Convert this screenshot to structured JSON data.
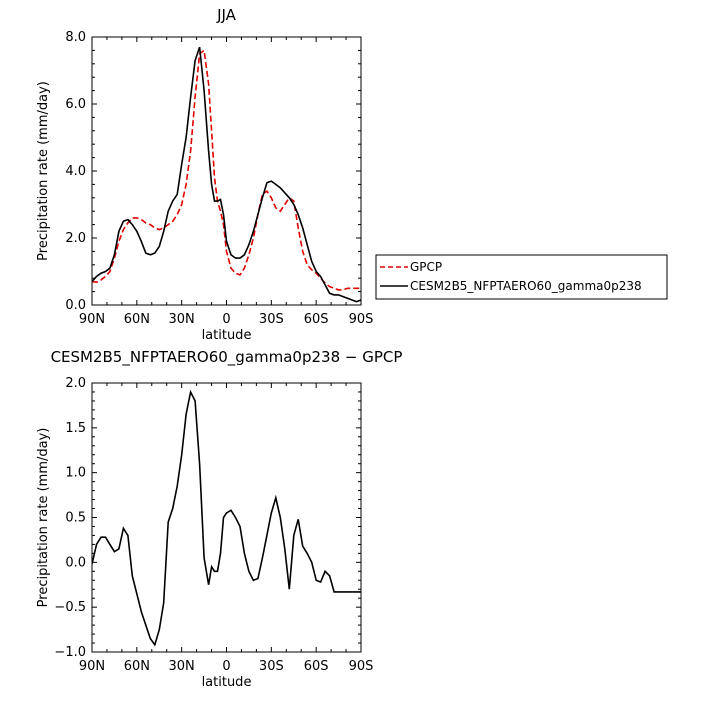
{
  "chart_data": [
    {
      "type": "line",
      "title": "JJA",
      "xlabel": "latitude",
      "ylabel": "Precipitation rate (mm/day)",
      "xlim": [
        90,
        -90
      ],
      "ylim": [
        0,
        8
      ],
      "xticks": [
        90,
        60,
        30,
        0,
        -30,
        -60,
        -90
      ],
      "xtick_labels": [
        "90N",
        "60N",
        "30N",
        "0",
        "30S",
        "60S",
        "90S"
      ],
      "yticks": [
        0,
        2,
        4,
        6,
        8
      ],
      "ytick_labels": [
        "0.0",
        "2.0",
        "4.0",
        "6.0",
        "8.0"
      ],
      "legend_position": "outside-right",
      "series": [
        {
          "name": "GPCP",
          "color": "#e00000",
          "dash": "dashed",
          "x": [
            90,
            87,
            84,
            81,
            78,
            75,
            72,
            69,
            66,
            63,
            60,
            57,
            54,
            51,
            48,
            45,
            42,
            39,
            36,
            33,
            30,
            27,
            24,
            21,
            18,
            15,
            12,
            10,
            8,
            6,
            4,
            2,
            0,
            -3,
            -6,
            -9,
            -12,
            -15,
            -18,
            -21,
            -24,
            -27,
            -30,
            -33,
            -36,
            -39,
            -42,
            -45,
            -48,
            -51,
            -54,
            -57,
            -60,
            -63,
            -66,
            -69,
            -72,
            -75,
            -78,
            -81,
            -84,
            -87,
            -90
          ],
          "values": [
            0.7,
            0.68,
            0.75,
            0.85,
            1.0,
            1.4,
            1.9,
            2.25,
            2.45,
            2.6,
            2.6,
            2.55,
            2.45,
            2.4,
            2.3,
            2.25,
            2.3,
            2.4,
            2.5,
            2.7,
            3.0,
            3.6,
            4.6,
            6.2,
            7.5,
            7.6,
            6.6,
            5.2,
            3.8,
            3.1,
            2.8,
            2.4,
            1.6,
            1.1,
            0.95,
            0.9,
            1.1,
            1.5,
            2.0,
            2.7,
            3.3,
            3.4,
            3.2,
            2.9,
            2.8,
            3.0,
            3.2,
            3.1,
            2.3,
            1.6,
            1.2,
            1.05,
            0.95,
            0.8,
            0.65,
            0.55,
            0.5,
            0.45,
            0.45,
            0.5,
            0.5,
            0.5,
            0.5
          ]
        },
        {
          "name": "CESM2B5_NFPTAERO60_gamma0p238",
          "color": "#000000",
          "dash": "solid",
          "x": [
            90,
            87,
            84,
            81,
            78,
            75,
            72,
            69,
            66,
            63,
            60,
            57,
            54,
            51,
            48,
            45,
            42,
            39,
            36,
            33,
            30,
            27,
            24,
            21,
            18,
            15,
            12,
            10,
            8,
            6,
            4,
            2,
            0,
            -3,
            -6,
            -9,
            -12,
            -15,
            -18,
            -21,
            -24,
            -27,
            -30,
            -33,
            -36,
            -39,
            -42,
            -45,
            -48,
            -51,
            -54,
            -57,
            -60,
            -63,
            -66,
            -69,
            -72,
            -75,
            -78,
            -81,
            -84,
            -87,
            -90
          ],
          "values": [
            0.7,
            0.85,
            0.95,
            1.0,
            1.1,
            1.5,
            2.2,
            2.5,
            2.55,
            2.4,
            2.2,
            1.9,
            1.55,
            1.5,
            1.55,
            1.75,
            2.2,
            2.8,
            3.1,
            3.3,
            4.2,
            5.0,
            6.2,
            7.3,
            7.7,
            6.4,
            4.6,
            3.6,
            3.1,
            3.1,
            3.15,
            2.7,
            1.9,
            1.5,
            1.4,
            1.4,
            1.5,
            1.8,
            2.2,
            2.7,
            3.2,
            3.65,
            3.7,
            3.6,
            3.5,
            3.35,
            3.2,
            3.0,
            2.7,
            2.3,
            1.8,
            1.3,
            1.0,
            0.85,
            0.6,
            0.35,
            0.3,
            0.3,
            0.25,
            0.2,
            0.15,
            0.1,
            0.15
          ]
        }
      ]
    },
    {
      "type": "line",
      "title": "CESM2B5_NFPTAERO60_gamma0p238 − GPCP",
      "xlabel": "latitude",
      "ylabel": "Precipitation rate (mm/day)",
      "xlim": [
        90,
        -90
      ],
      "ylim": [
        -1,
        2
      ],
      "xticks": [
        90,
        60,
        30,
        0,
        -30,
        -60,
        -90
      ],
      "xtick_labels": [
        "90N",
        "60N",
        "30N",
        "0",
        "30S",
        "60S",
        "90S"
      ],
      "yticks": [
        -1,
        -0.5,
        0,
        0.5,
        1,
        1.5,
        2
      ],
      "ytick_labels": [
        "−1.0",
        "−0.5",
        "0.0",
        "0.5",
        "1.0",
        "1.5",
        "2.0"
      ],
      "series": [
        {
          "color": "#000000",
          "dash": "solid",
          "x": [
            90,
            87,
            84,
            81,
            78,
            75,
            72,
            69,
            66,
            63,
            60,
            57,
            54,
            51,
            48,
            45,
            42,
            39,
            36,
            33,
            30,
            27,
            24,
            21,
            18,
            15,
            12,
            10,
            8,
            6,
            4,
            2,
            0,
            -3,
            -6,
            -9,
            -12,
            -15,
            -18,
            -21,
            -24,
            -27,
            -30,
            -33,
            -36,
            -39,
            -42,
            -45,
            -48,
            -51,
            -54,
            -57,
            -60,
            -63,
            -66,
            -69,
            -72,
            -75,
            -78,
            -81,
            -84,
            -87,
            -90
          ],
          "values": [
            -0.02,
            0.2,
            0.28,
            0.28,
            0.2,
            0.12,
            0.15,
            0.38,
            0.3,
            -0.15,
            -0.35,
            -0.55,
            -0.7,
            -0.85,
            -0.92,
            -0.75,
            -0.45,
            0.45,
            0.6,
            0.85,
            1.2,
            1.65,
            1.9,
            1.8,
            1.1,
            0.05,
            -0.25,
            -0.05,
            -0.1,
            -0.1,
            0.1,
            0.5,
            0.55,
            0.58,
            0.5,
            0.4,
            0.1,
            -0.1,
            -0.2,
            -0.18,
            0.05,
            0.3,
            0.55,
            0.72,
            0.5,
            0.15,
            -0.3,
            0.3,
            0.48,
            0.18,
            0.1,
            0.0,
            -0.2,
            -0.22,
            -0.1,
            -0.15,
            -0.33,
            -0.33,
            -0.33,
            -0.33,
            -0.33,
            -0.33,
            -0.33
          ]
        }
      ]
    }
  ]
}
